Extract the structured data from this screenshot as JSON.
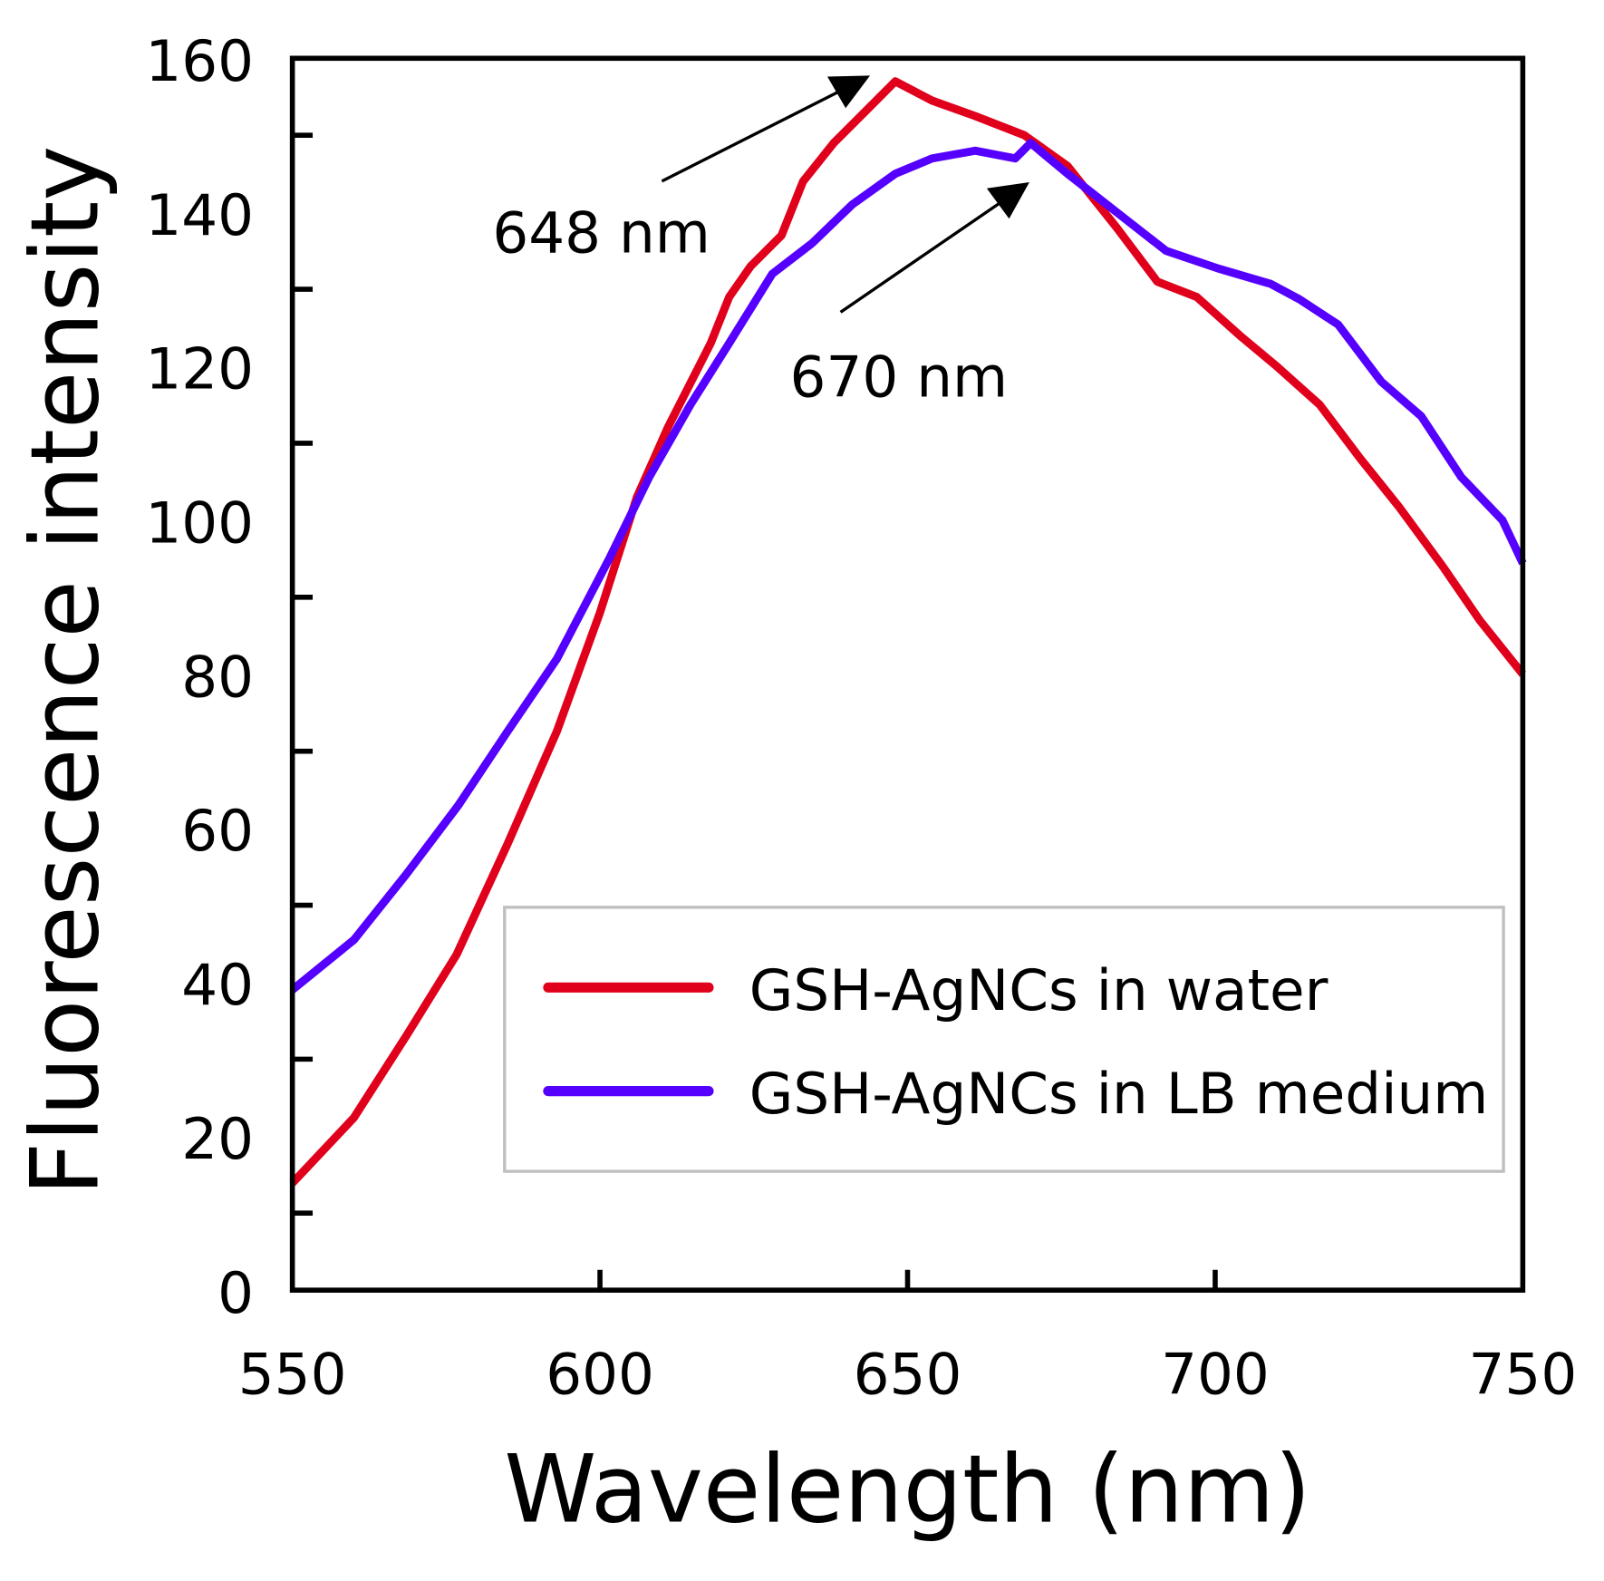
{
  "chart_data": {
    "type": "line",
    "title": "",
    "xlabel": "Wavelength (nm)",
    "ylabel": "Fluorescence intensity",
    "xlim": [
      550,
      750
    ],
    "ylim": [
      0,
      160
    ],
    "xticks": [
      550,
      600,
      650,
      700,
      750
    ],
    "yticks": [
      0,
      20,
      40,
      60,
      80,
      100,
      120,
      140,
      160
    ],
    "yminor_ticks": [
      10,
      30,
      50,
      70,
      90,
      110,
      130,
      150
    ],
    "grid": false,
    "legend_position": "bottom-right",
    "series": [
      {
        "name": "GSH-AgNCs in water",
        "color": "#e0001b",
        "x": [
          550,
          560,
          568.5,
          576.7,
          585,
          593,
          600,
          606,
          611,
          618,
          621,
          624.5,
          629.5,
          633,
          638,
          643,
          648,
          654,
          661,
          669,
          676,
          684,
          690.6,
          697,
          704,
          710,
          717,
          723.6,
          730,
          737,
          743,
          750
        ],
        "y": [
          13.9,
          22.4,
          33,
          43.6,
          58,
          72.6,
          88,
          103,
          112,
          123,
          129,
          133,
          137,
          144,
          149,
          153,
          157,
          154.5,
          152.5,
          150,
          146,
          138,
          131,
          129,
          124,
          120,
          115,
          108,
          101.6,
          94,
          87,
          80
        ]
      },
      {
        "name": "GSH-AgNCs in LB medium",
        "color": "#5500ff",
        "x": [
          550,
          560,
          568.5,
          577,
          585,
          593,
          601.5,
          608,
          614.7,
          621,
          628,
          634.5,
          641,
          648,
          654,
          661,
          667.5,
          670,
          676,
          684,
          692,
          700.5,
          709,
          713.7,
          720,
          727,
          733.5,
          740,
          746.7,
          750
        ],
        "y": [
          39,
          45.5,
          54,
          63,
          72.6,
          82,
          95,
          105.6,
          115,
          123,
          132,
          136,
          141,
          145,
          147,
          148,
          147,
          149,
          145,
          140,
          135,
          132.7,
          130.7,
          128.7,
          125.4,
          118,
          113.5,
          105.6,
          100,
          94.4
        ]
      }
    ],
    "annotations": [
      {
        "text": "648 nm",
        "points_to": [
          648,
          157
        ]
      },
      {
        "text": "670 nm",
        "points_to": [
          670,
          149
        ]
      }
    ]
  }
}
